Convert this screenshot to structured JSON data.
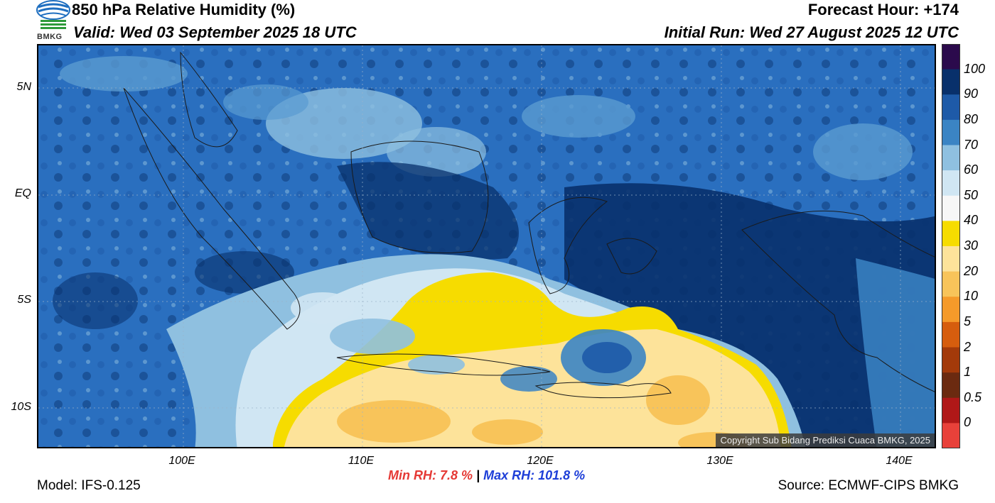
{
  "header": {
    "title": "850 hPa Relative Humidity (%)",
    "valid": "Valid: Wed 03 September 2025 18 UTC",
    "forecast_hour": "Forecast Hour: +174",
    "initial_run": "Initial Run: Wed 27 August 2025 12 UTC"
  },
  "logo": {
    "text": "BMKG"
  },
  "map": {
    "lat_labels": [
      "5N",
      "EQ",
      "5S",
      "10S"
    ],
    "lon_labels": [
      "100E",
      "110E",
      "120E",
      "130E",
      "140E"
    ],
    "copyright": "Copyright Sub Bidang Prediksi Cuaca BMKG, 2025",
    "colors": {
      "very_moist": "#08306b",
      "moist": "#2a6fbf",
      "mid": "#4a90cc",
      "light": "#8fc0e0",
      "pale": "#d0e6f3",
      "yellow": "#f6dc00",
      "sand": "#fde39a",
      "orange": "#f8c45a",
      "land_border": "#1a1a1a"
    }
  },
  "colorbar": {
    "labels": [
      "100",
      "90",
      "80",
      "70",
      "60",
      "50",
      "40",
      "30",
      "20",
      "10",
      "5",
      "2",
      "1",
      "0.5",
      "0"
    ],
    "colors": [
      "#2b0a4c",
      "#08306b",
      "#1e5aa8",
      "#3b84c4",
      "#8fc0e0",
      "#d0e6f3",
      "#f7f7f7",
      "#f6dc00",
      "#fde39a",
      "#f8c45a",
      "#f59a2a",
      "#d65d0e",
      "#a33a0a",
      "#6b2a10",
      "#b01818",
      "#e8413a"
    ]
  },
  "stats": {
    "min_label": "Min RH:   7.8 %",
    "separator": "|",
    "max_label": "Max RH: 101.8 %"
  },
  "footer": {
    "model": "Model: IFS-0.125",
    "source": "Source: ECMWF-CIPS BMKG"
  }
}
